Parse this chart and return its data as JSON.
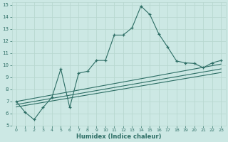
{
  "xlabel": "Humidex (Indice chaleur)",
  "ylabel": "",
  "bg_color": "#cce8e4",
  "grid_color": "#b8d8d0",
  "line_color": "#2d6e65",
  "xlim": [
    -0.5,
    23.5
  ],
  "ylim": [
    5,
    15.2
  ],
  "xticks": [
    0,
    1,
    2,
    3,
    4,
    5,
    6,
    7,
    8,
    9,
    10,
    11,
    12,
    13,
    14,
    15,
    16,
    17,
    18,
    19,
    20,
    21,
    22,
    23
  ],
  "yticks": [
    5,
    6,
    7,
    8,
    9,
    10,
    11,
    12,
    13,
    14,
    15
  ],
  "main_line_x": [
    0,
    1,
    2,
    3,
    4,
    5,
    6,
    7,
    8,
    9,
    10,
    11,
    12,
    13,
    14,
    15,
    16,
    17,
    18,
    19,
    20,
    21,
    22,
    23
  ],
  "main_line_y": [
    7.0,
    6.1,
    5.5,
    6.5,
    7.35,
    9.7,
    6.5,
    9.35,
    9.5,
    10.4,
    10.4,
    12.5,
    12.5,
    13.1,
    14.9,
    14.2,
    12.6,
    11.5,
    10.35,
    10.2,
    10.15,
    9.8,
    10.2,
    10.4
  ],
  "line2_x": [
    0,
    23
  ],
  "line2_y": [
    6.55,
    9.4
  ],
  "line3_x": [
    0,
    23
  ],
  "line3_y": [
    6.75,
    9.7
  ],
  "line4_x": [
    0,
    23
  ],
  "line4_y": [
    7.0,
    10.1
  ]
}
